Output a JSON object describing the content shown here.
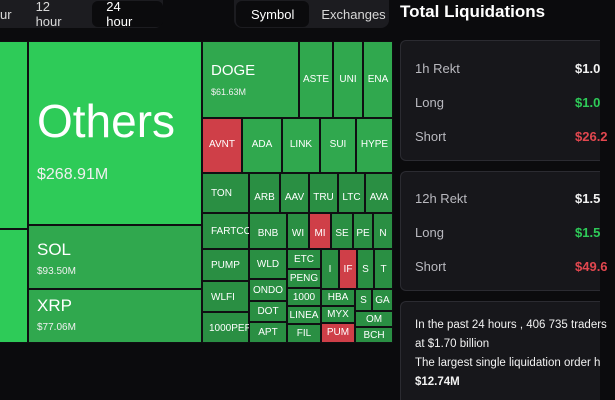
{
  "time_tabs": [
    {
      "label": "ur",
      "active": false
    },
    {
      "label": "12 hour",
      "active": false
    },
    {
      "label": "24 hour",
      "active": true
    }
  ],
  "view_tabs": [
    {
      "label": "Symbol",
      "active": true
    },
    {
      "label": "Exchanges",
      "active": false
    }
  ],
  "treemap": {
    "tiles": {
      "others": {
        "name": "Others",
        "value": "$268.91M"
      },
      "sol": {
        "name": "SOL",
        "value": "$93.50M"
      },
      "xrp": {
        "name": "XRP",
        "value": "$77.06M"
      },
      "doge": {
        "name": "DOGE",
        "value": "$61.63M"
      },
      "aste": {
        "name": "ASTE"
      },
      "uni": {
        "name": "UNI"
      },
      "ena": {
        "name": "ENA"
      },
      "avnt": {
        "name": "AVNT"
      },
      "ada": {
        "name": "ADA"
      },
      "link": {
        "name": "LINK"
      },
      "sui": {
        "name": "SUI"
      },
      "hype": {
        "name": "HYPE"
      },
      "ton": {
        "name": "TON"
      },
      "arb": {
        "name": "ARB"
      },
      "aav": {
        "name": "AAV"
      },
      "tru": {
        "name": "TRU"
      },
      "ltc": {
        "name": "LTC"
      },
      "ava": {
        "name": "AVA"
      },
      "fartco": {
        "name": "FARTCO"
      },
      "bnb": {
        "name": "BNB"
      },
      "wi": {
        "name": "WI"
      },
      "mi": {
        "name": "MI"
      },
      "se": {
        "name": "SE"
      },
      "pe": {
        "name": "PE"
      },
      "n": {
        "name": "N"
      },
      "pump": {
        "name": "PUMP"
      },
      "wld": {
        "name": "WLD"
      },
      "etc": {
        "name": "ETC"
      },
      "peng": {
        "name": "PENG"
      },
      "i": {
        "name": "I"
      },
      "if": {
        "name": "IF"
      },
      "s": {
        "name": "S"
      },
      "t": {
        "name": "T"
      },
      "wlfi": {
        "name": "WLFI"
      },
      "ondo": {
        "name": "ONDO"
      },
      "k1000": {
        "name": "1000"
      },
      "hba": {
        "name": "HBA"
      },
      "s2": {
        "name": "S"
      },
      "ga": {
        "name": "GA"
      },
      "pepe": {
        "name": "1000PEP"
      },
      "dot": {
        "name": "DOT"
      },
      "linea": {
        "name": "LINEA"
      },
      "myx": {
        "name": "MYX"
      },
      "om": {
        "name": "OM"
      },
      "apt": {
        "name": "APT"
      },
      "fil": {
        "name": "FIL"
      },
      "pum": {
        "name": "PUM"
      },
      "bch": {
        "name": "BCH"
      }
    }
  },
  "liquidations": {
    "title": "Total Liquidations",
    "rekt_1h": {
      "label": "1h Rekt",
      "total": "$1.0",
      "long_label": "Long",
      "long": "$1.0",
      "short_label": "Short",
      "short": "$26.2"
    },
    "rekt_12h": {
      "label": "12h Rekt",
      "total": "$1.5",
      "long_label": "Long",
      "long": "$1.5",
      "short_label": "Short",
      "short": "$49.6"
    },
    "summary": {
      "line1": "In the past 24 hours , 406 735 traders",
      "line2": "at $1.70 billion",
      "line3": "The largest single liquidation order h",
      "line4": "$12.74M"
    }
  }
}
